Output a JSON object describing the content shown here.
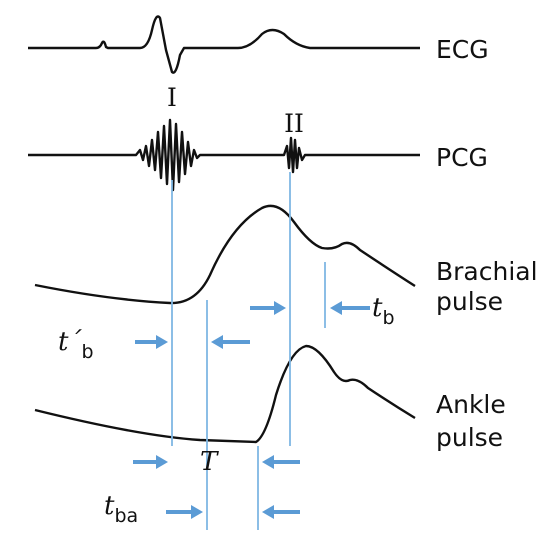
{
  "labels": {
    "ecg": "ECG",
    "first_sound": "I",
    "second_sound": "II",
    "pcg": "PCG",
    "brachial": [
      "Brachial",
      "pulse"
    ],
    "ankle": [
      "Ankle",
      "pulse"
    ],
    "t_b_prime": {
      "main": "t´",
      "sub": "b"
    },
    "t_b": {
      "main": "t",
      "sub": "b"
    },
    "T": "T",
    "t_ba": {
      "main": "t",
      "sub": "ba"
    }
  }
}
